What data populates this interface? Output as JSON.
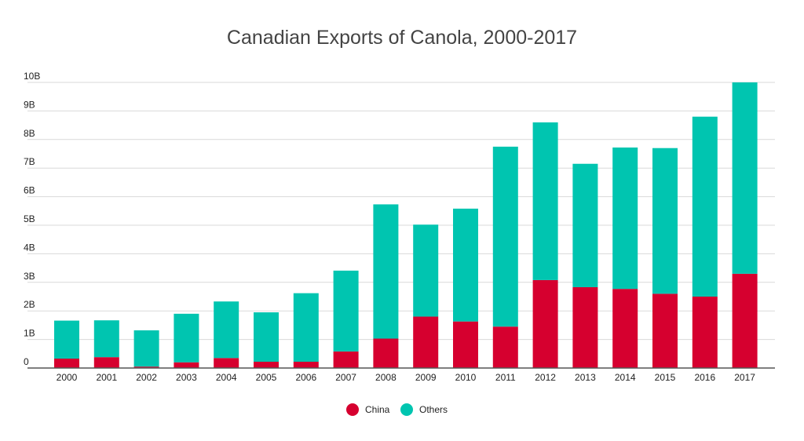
{
  "chart_data": {
    "type": "bar",
    "stacked": true,
    "title": "Canadian Exports of Canola, 2000-2017",
    "xlabel": "",
    "ylabel": "",
    "categories": [
      "2000",
      "2001",
      "2002",
      "2003",
      "2004",
      "2005",
      "2006",
      "2007",
      "2008",
      "2009",
      "2010",
      "2011",
      "2012",
      "2013",
      "2014",
      "2015",
      "2016",
      "2017"
    ],
    "series": [
      {
        "name": "China",
        "color": "#d6002f",
        "values": [
          0.33,
          0.38,
          0.05,
          0.2,
          0.35,
          0.22,
          0.22,
          0.58,
          1.03,
          1.8,
          1.63,
          1.45,
          3.08,
          2.83,
          2.77,
          2.6,
          2.5,
          3.3
        ]
      },
      {
        "name": "Others",
        "color": "#00c5b0",
        "values": [
          1.33,
          1.29,
          1.27,
          1.7,
          1.98,
          1.73,
          2.4,
          2.83,
          4.7,
          3.22,
          3.95,
          6.3,
          5.52,
          4.32,
          4.95,
          5.1,
          6.3,
          6.7
        ]
      }
    ],
    "ylim": [
      0,
      10
    ],
    "yticks": [
      0,
      1,
      2,
      3,
      4,
      5,
      6,
      7,
      8,
      9,
      10
    ],
    "ytick_labels": [
      "0",
      "1B",
      "2B",
      "3B",
      "4B",
      "5B",
      "6B",
      "7B",
      "8B",
      "9B",
      "10B"
    ],
    "grid": true,
    "legend_position": "bottom-center"
  }
}
